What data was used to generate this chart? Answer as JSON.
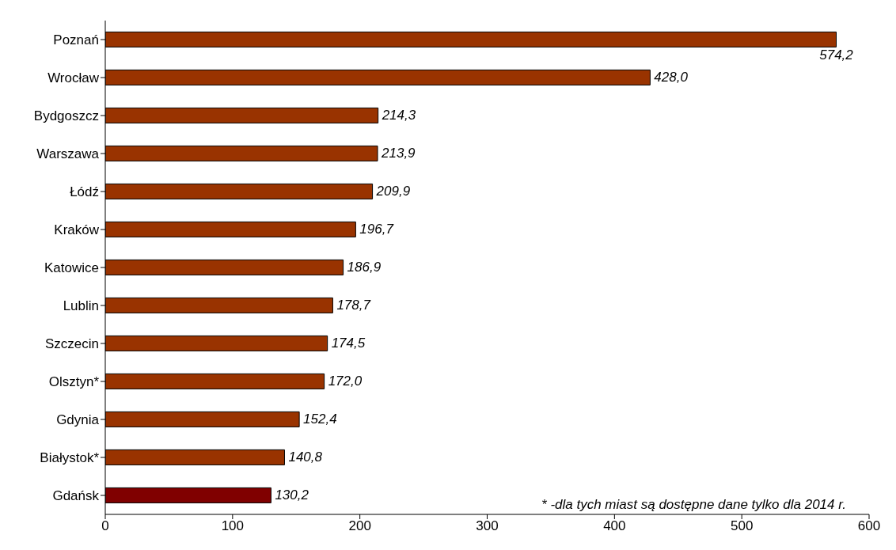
{
  "chart_data": {
    "type": "bar",
    "orientation": "horizontal",
    "categories": [
      "Poznań",
      "Wrocław",
      "Bydgoszcz",
      "Warszawa",
      "Łódź",
      "Kraków",
      "Katowice",
      "Lublin",
      "Szczecin",
      "Olsztyn*",
      "Gdynia",
      "Białystok*",
      "Gdańsk"
    ],
    "values": [
      574.2,
      428.0,
      214.3,
      213.9,
      209.9,
      196.7,
      186.9,
      178.7,
      174.5,
      172.0,
      152.4,
      140.8,
      130.2
    ],
    "colors": [
      "#993300",
      "#993300",
      "#993300",
      "#993300",
      "#993300",
      "#993300",
      "#993300",
      "#993300",
      "#993300",
      "#993300",
      "#993300",
      "#993300",
      "#800000"
    ],
    "value_labels": [
      "574,2",
      "428,0",
      "214,3",
      "213,9",
      "209,9",
      "196,7",
      "186,9",
      "178,7",
      "174,5",
      "172,0",
      "152,4",
      "140,8",
      "130,2"
    ],
    "xlim": [
      0,
      600
    ],
    "xticks": [
      0,
      100,
      200,
      300,
      400,
      500,
      600
    ],
    "grid": false,
    "annotations": [
      "* -dla tych miast są dostępne dane tylko dla 2014 r."
    ]
  }
}
